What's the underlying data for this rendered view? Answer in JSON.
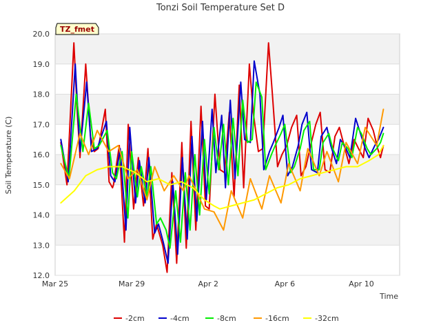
{
  "chart_data": {
    "type": "line",
    "title": "Tonzi Soil Temperature Set D",
    "xlabel": "Time",
    "ylabel": "Soil Temperature (C)",
    "annotation": "TZ_fmet",
    "xlim": [
      0,
      18
    ],
    "ylim": [
      12.0,
      20.0
    ],
    "x_ticks": [
      {
        "value": 0,
        "label": "Mar 25"
      },
      {
        "value": 4,
        "label": "Mar 29"
      },
      {
        "value": 8,
        "label": "Apr 2"
      },
      {
        "value": 12,
        "label": "Apr 6"
      },
      {
        "value": 16,
        "label": "Apr 10"
      }
    ],
    "y_ticks": [
      {
        "value": 12.0,
        "label": "12.0"
      },
      {
        "value": 13.0,
        "label": "13.0"
      },
      {
        "value": 14.0,
        "label": "14.0"
      },
      {
        "value": 15.0,
        "label": "15.0"
      },
      {
        "value": 16.0,
        "label": "16.0"
      },
      {
        "value": 17.0,
        "label": "17.0"
      },
      {
        "value": 18.0,
        "label": "18.0"
      },
      {
        "value": 19.0,
        "label": "19.0"
      },
      {
        "value": 20.0,
        "label": "20.0"
      }
    ],
    "series": [
      {
        "name": "-2cm",
        "color": "#dd0000",
        "x": [
          0.3,
          0.62,
          0.98,
          1.15,
          1.3,
          1.6,
          1.85,
          2.05,
          2.25,
          2.62,
          2.82,
          3.0,
          3.05,
          3.35,
          3.62,
          3.82,
          4.1,
          4.35,
          4.62,
          4.85,
          5.1,
          5.3,
          5.62,
          5.85,
          6.1,
          6.35,
          6.62,
          6.85,
          7.1,
          7.35,
          7.62,
          7.85,
          8.05,
          8.35,
          8.62,
          8.85,
          9.1,
          9.35,
          9.62,
          9.85,
          10.15,
          10.35,
          10.62,
          10.85,
          11.15,
          11.35,
          11.62,
          11.85,
          12.1,
          12.35,
          12.62,
          12.85,
          13.1,
          13.35,
          13.62,
          13.85,
          14.1,
          14.35,
          14.62,
          14.85,
          15.1,
          15.35,
          15.62,
          15.85,
          16.1,
          16.35,
          16.62,
          16.85,
          17.0,
          17.15
        ],
        "values": [
          16.4,
          15.0,
          19.7,
          17.5,
          15.9,
          19.0,
          16.6,
          16.1,
          16.2,
          17.5,
          15.1,
          14.9,
          15.0,
          16.3,
          13.1,
          17.0,
          14.2,
          15.9,
          14.3,
          16.2,
          13.2,
          13.7,
          13.0,
          12.1,
          15.4,
          12.4,
          16.4,
          12.9,
          17.1,
          13.5,
          17.6,
          14.3,
          14.2,
          18.0,
          15.5,
          15.4,
          17.4,
          14.6,
          18.3,
          14.9,
          19.0,
          17.4,
          16.1,
          16.2,
          19.7,
          18.0,
          15.6,
          16.0,
          16.3,
          16.9,
          17.3,
          15.3,
          15.6,
          16.3,
          17.0,
          17.4,
          15.5,
          15.4,
          16.6,
          16.9,
          16.3,
          15.7,
          16.5,
          16.2,
          15.9,
          17.2,
          16.8,
          16.2,
          15.9,
          16.3
        ]
      },
      {
        "name": "-4cm",
        "color": "#0000cc",
        "x": [
          0.3,
          0.68,
          1.05,
          1.3,
          1.65,
          1.9,
          2.2,
          2.68,
          2.9,
          3.12,
          3.4,
          3.7,
          3.9,
          4.2,
          4.4,
          4.7,
          4.9,
          5.2,
          5.4,
          5.65,
          5.9,
          6.15,
          6.4,
          6.65,
          6.9,
          7.15,
          7.4,
          7.7,
          7.9,
          8.2,
          8.4,
          8.7,
          8.9,
          9.15,
          9.4,
          9.7,
          9.9,
          10.2,
          10.4,
          10.7,
          10.9,
          11.2,
          11.4,
          11.7,
          11.9,
          12.15,
          12.4,
          12.7,
          12.9,
          13.15,
          13.4,
          13.7,
          13.9,
          14.2,
          14.4,
          14.7,
          14.9,
          15.2,
          15.4,
          15.7,
          15.9,
          16.2,
          16.4,
          16.7,
          16.9,
          17.15
        ],
        "values": [
          16.5,
          15.1,
          19.0,
          16.1,
          18.4,
          16.1,
          16.2,
          17.1,
          15.3,
          15.1,
          16.2,
          13.5,
          16.9,
          14.4,
          15.8,
          14.4,
          15.9,
          13.4,
          13.7,
          13.1,
          12.4,
          15.1,
          12.7,
          15.9,
          13.2,
          16.6,
          13.8,
          17.1,
          14.5,
          17.5,
          15.4,
          17.3,
          14.9,
          17.8,
          15.2,
          18.4,
          16.5,
          16.4,
          19.1,
          18.0,
          15.5,
          16.1,
          16.4,
          16.9,
          17.3,
          15.3,
          15.6,
          16.3,
          17.0,
          17.4,
          15.5,
          15.4,
          16.6,
          16.9,
          16.3,
          15.7,
          16.5,
          16.2,
          15.9,
          17.2,
          16.8,
          16.2,
          15.9,
          16.3,
          16.5,
          16.9
        ]
      },
      {
        "name": "-8cm",
        "color": "#00ee00",
        "x": [
          0.3,
          0.72,
          1.1,
          1.45,
          1.75,
          2.05,
          2.3,
          2.72,
          3.0,
          3.2,
          3.5,
          3.8,
          4.0,
          4.3,
          4.5,
          4.8,
          5.0,
          5.3,
          5.5,
          5.8,
          6.0,
          6.3,
          6.55,
          6.8,
          7.05,
          7.3,
          7.55,
          7.8,
          8.05,
          8.3,
          8.55,
          8.8,
          9.05,
          9.3,
          9.55,
          9.8,
          10.05,
          10.3,
          10.5,
          10.8,
          11.0,
          11.3,
          11.5,
          11.8,
          12.0,
          12.3,
          12.5,
          12.8,
          13.0,
          13.3,
          13.5,
          13.8,
          14.0,
          14.3,
          14.5,
          14.8,
          15.0,
          15.3,
          15.5,
          15.8,
          16.0,
          16.3,
          16.5,
          16.8,
          17.0,
          17.15
        ],
        "values": [
          16.3,
          15.2,
          18.0,
          16.1,
          17.7,
          16.2,
          16.3,
          16.8,
          15.4,
          15.2,
          16.1,
          13.9,
          16.1,
          14.6,
          15.6,
          14.6,
          15.6,
          13.7,
          13.9,
          13.5,
          12.9,
          14.8,
          13.1,
          15.4,
          13.5,
          16.0,
          14.0,
          16.5,
          14.7,
          16.9,
          15.5,
          17.0,
          15.0,
          17.2,
          15.3,
          17.8,
          16.4,
          16.5,
          18.4,
          17.9,
          15.5,
          16.0,
          16.3,
          16.7,
          17.0,
          15.4,
          15.6,
          16.2,
          16.8,
          17.1,
          15.5,
          15.5,
          16.4,
          16.7,
          16.2,
          15.8,
          16.4,
          16.2,
          15.9,
          16.9,
          16.7,
          16.2,
          16.0,
          16.2,
          16.4,
          16.7
        ]
      },
      {
        "name": "-16cm",
        "color": "#ff9900",
        "x": [
          0.3,
          0.75,
          1.3,
          1.75,
          2.2,
          2.8,
          3.3,
          3.8,
          4.3,
          4.8,
          5.2,
          5.7,
          6.2,
          6.7,
          7.0,
          7.3,
          7.8,
          8.3,
          8.8,
          9.2,
          9.8,
          10.2,
          10.8,
          11.2,
          11.8,
          12.2,
          12.8,
          13.2,
          13.8,
          14.2,
          14.8,
          15.2,
          15.8,
          16.2,
          16.8,
          17.15
        ],
        "values": [
          15.7,
          15.2,
          16.7,
          16.0,
          16.8,
          16.1,
          16.3,
          15.2,
          15.5,
          14.5,
          15.6,
          14.8,
          15.3,
          14.8,
          15.3,
          14.9,
          14.2,
          14.1,
          13.5,
          14.8,
          13.9,
          15.2,
          14.2,
          15.3,
          14.4,
          15.7,
          14.8,
          16.2,
          15.3,
          16.1,
          15.1,
          16.4,
          15.7,
          16.9,
          16.3,
          17.5
        ]
      },
      {
        "name": "-32cm",
        "color": "#ffff00",
        "x": [
          0.3,
          1.0,
          1.6,
          2.2,
          2.8,
          3.5,
          4.2,
          4.8,
          5.4,
          6.0,
          6.6,
          7.2,
          7.8,
          8.3,
          8.6,
          9.2,
          9.8,
          10.4,
          11.0,
          11.6,
          12.2,
          12.8,
          13.4,
          14.0,
          14.6,
          15.2,
          15.8,
          16.4,
          16.9,
          17.15
        ],
        "values": [
          14.4,
          14.8,
          15.3,
          15.5,
          15.6,
          15.6,
          15.4,
          15.1,
          15.2,
          15.0,
          15.1,
          14.9,
          14.5,
          14.3,
          14.2,
          14.3,
          14.4,
          14.5,
          14.7,
          14.9,
          15.0,
          15.2,
          15.3,
          15.4,
          15.5,
          15.6,
          15.6,
          15.8,
          16.0,
          16.3
        ]
      }
    ]
  }
}
